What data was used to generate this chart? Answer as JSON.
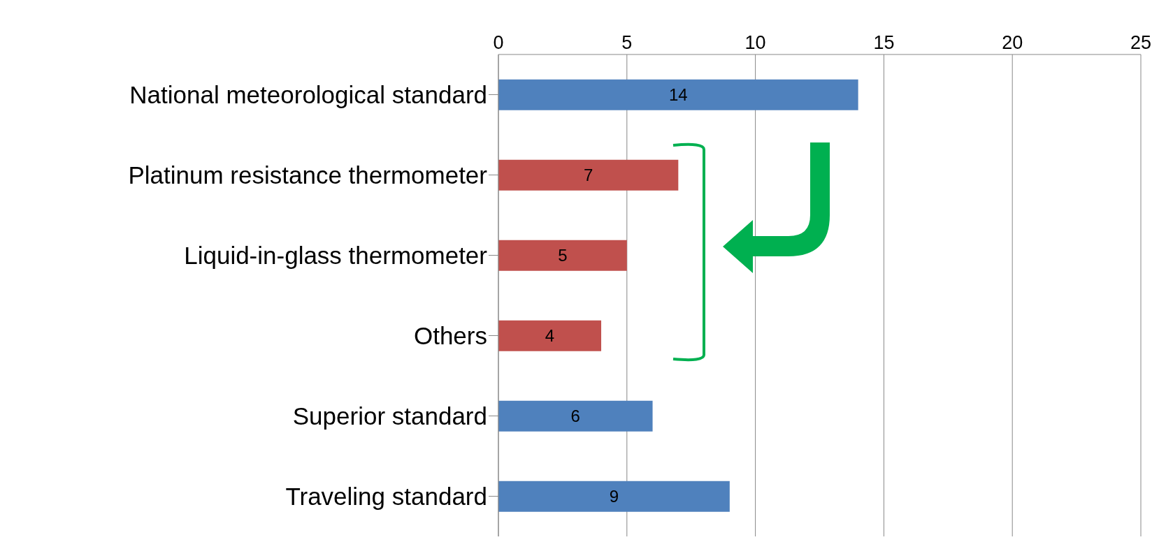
{
  "chart_data": {
    "type": "bar",
    "orientation": "horizontal",
    "categories": [
      "National meteorological standard",
      "Platinum resistance thermometer",
      "Liquid-in-glass thermometer",
      "Others",
      "Superior standard",
      "Traveling standard"
    ],
    "values": [
      14,
      7,
      5,
      4,
      6,
      9
    ],
    "colors": [
      "#4f81bd",
      "#c0504d",
      "#c0504d",
      "#c0504d",
      "#4f81bd",
      "#4f81bd"
    ],
    "xlim": [
      0,
      25
    ],
    "xticks": [
      0,
      5,
      10,
      15,
      20,
      25
    ],
    "grid": "x",
    "data_labels": true
  }
}
